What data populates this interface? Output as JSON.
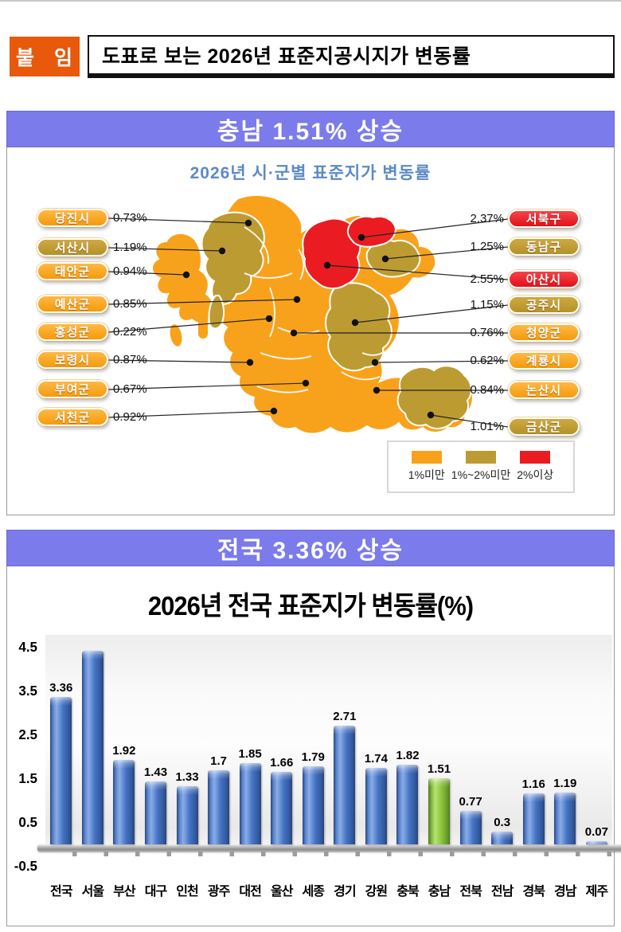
{
  "header": {
    "badge": "붙 임",
    "title": "도표로 보는 2026년 표준지공시지가 변동률"
  },
  "sections": {
    "chungnam": {
      "banner": "충남 1.51% 상승"
    },
    "national": {
      "banner": "전국 3.36% 상승"
    }
  },
  "colors": {
    "banner_purple": "#7b7beb",
    "badge_orange": "#e8590c",
    "bar_blue": "#4472c4",
    "bar_highlight_green": "#8cc63e",
    "map_orange": "#f8a21b",
    "map_olive": "#bd9b33",
    "map_red": "#ea1c22",
    "map_title_blue": "#5b8ac5"
  },
  "chart_data": [
    {
      "type": "map",
      "title": "2026년 시·군별 표준지가 변동률",
      "unit": "%",
      "regions": [
        {
          "name": "당진시",
          "value": 0.73,
          "display": "0.73%",
          "tier": "1%미만"
        },
        {
          "name": "서산시",
          "value": 1.19,
          "display": "1.19%",
          "tier": "1%~2%미만"
        },
        {
          "name": "태안군",
          "value": 0.94,
          "display": "0.94%",
          "tier": "1%미만"
        },
        {
          "name": "예산군",
          "value": 0.85,
          "display": "0.85%",
          "tier": "1%미만"
        },
        {
          "name": "홍성군",
          "value": 0.22,
          "display": "0.22%",
          "tier": "1%미만"
        },
        {
          "name": "보령시",
          "value": 0.87,
          "display": "0.87%",
          "tier": "1%미만"
        },
        {
          "name": "부여군",
          "value": 0.67,
          "display": "0.67%",
          "tier": "1%미만"
        },
        {
          "name": "서천군",
          "value": 0.92,
          "display": "0.92%",
          "tier": "1%미만"
        },
        {
          "name": "서북구",
          "value": 2.37,
          "display": "2.37%",
          "tier": "2%이상"
        },
        {
          "name": "동남구",
          "value": 1.25,
          "display": "1.25%",
          "tier": "1%~2%미만"
        },
        {
          "name": "아산시",
          "value": 2.55,
          "display": "2.55%",
          "tier": "2%이상"
        },
        {
          "name": "공주시",
          "value": 1.15,
          "display": "1.15%",
          "tier": "1%~2%미만"
        },
        {
          "name": "청양군",
          "value": 0.76,
          "display": "0.76%",
          "tier": "1%미만"
        },
        {
          "name": "계룡시",
          "value": 0.62,
          "display": "0.62%",
          "tier": "1%미만"
        },
        {
          "name": "논산시",
          "value": 0.84,
          "display": "0.84%",
          "tier": "1%미만"
        },
        {
          "name": "금산군",
          "value": 1.01,
          "display": "1.01%",
          "tier": "1%~2%미만"
        }
      ],
      "legend": [
        {
          "label": "1%미만",
          "color": "#f8a21b"
        },
        {
          "label": "1%~2%미만",
          "color": "#bd9b33"
        },
        {
          "label": "2%이상",
          "color": "#ea1c22"
        }
      ],
      "legend_position": "bottom-right"
    },
    {
      "type": "bar",
      "title": "2026년 전국 표준지가 변동률(%)",
      "categories": [
        "전국",
        "서울",
        "부산",
        "대구",
        "인천",
        "광주",
        "대전",
        "울산",
        "세종",
        "경기",
        "강원",
        "충북",
        "충남",
        "전북",
        "전남",
        "경북",
        "경남",
        "제주"
      ],
      "values": [
        3.36,
        4.55,
        1.92,
        1.43,
        1.33,
        1.7,
        1.85,
        1.66,
        1.79,
        2.71,
        1.74,
        1.82,
        1.51,
        0.77,
        0.3,
        1.16,
        1.19,
        0.07
      ],
      "labels": [
        "3.36",
        "",
        "1.92",
        "1.43",
        "1.33",
        "1.7",
        "1.85",
        "1.66",
        "1.79",
        "2.71",
        "1.74",
        "1.82",
        "1.51",
        "0.77",
        "0.3",
        "1.16",
        "1.19",
        "0.07"
      ],
      "yticks": [
        4.5,
        3.5,
        2.5,
        1.5,
        0.5,
        -0.5
      ],
      "ylim": [
        -0.5,
        4.78
      ],
      "gridlines": false,
      "legend_position": "none",
      "bar_color": "#4472c4",
      "highlight": {
        "index": 12,
        "category": "충남",
        "color": "#8cc63e"
      }
    }
  ]
}
